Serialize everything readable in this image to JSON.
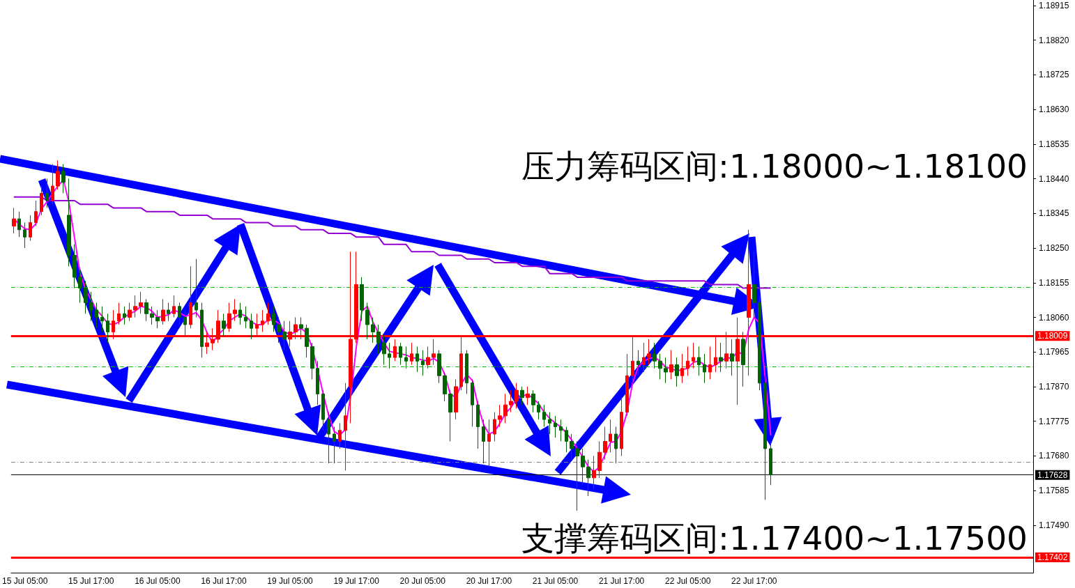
{
  "chart_data": {
    "type": "candlestick",
    "annotations": [
      "压力筹码区间:1.18000~1.18100",
      "支撑筹码区间:1.17400~1.17500"
    ],
    "categories": [
      null,
      null,
      "15 Jul 05:00",
      null,
      null,
      null,
      null,
      null,
      null,
      null,
      null,
      null,
      null,
      null,
      "15 Jul 17:00",
      null,
      null,
      null,
      null,
      null,
      null,
      null,
      null,
      null,
      null,
      null,
      "16 Jul 05:00",
      null,
      null,
      null,
      null,
      null,
      null,
      null,
      null,
      null,
      null,
      null,
      "16 Jul 17:00",
      null,
      null,
      null,
      null,
      null,
      null,
      null,
      null,
      null,
      null,
      null,
      "19 Jul 05:00",
      null,
      null,
      null,
      null,
      null,
      null,
      null,
      null,
      null,
      null,
      null,
      "19 Jul 17:00",
      null,
      null,
      null,
      null,
      null,
      null,
      null,
      null,
      null,
      null,
      null,
      "20 Jul 05:00",
      null,
      null,
      null,
      null,
      null,
      null,
      null,
      null,
      null,
      null,
      null,
      "20 Jul 17:00",
      null,
      null,
      null,
      null,
      null,
      null,
      null,
      null,
      null,
      null,
      null,
      "21 Jul 05:00",
      null,
      null,
      null,
      null,
      null,
      null,
      null,
      null,
      null,
      null,
      null,
      "21 Jul 17:00",
      null,
      null,
      null,
      null,
      null,
      null,
      null,
      null,
      null,
      null,
      null,
      "22 Jul 05:00",
      null,
      null,
      null,
      null,
      null,
      null,
      null,
      null,
      null,
      null,
      null,
      "22 Jul 17:00",
      null,
      null,
      null
    ],
    "ohlc": [
      [
        1.1831,
        1.1836,
        1.1829,
        1.1833
      ],
      [
        1.1833,
        1.1835,
        1.1828,
        1.183
      ],
      [
        1.183,
        1.1832,
        1.1825,
        1.1828
      ],
      [
        1.1828,
        1.1834,
        1.1827,
        1.1832
      ],
      [
        1.1832,
        1.1838,
        1.1831,
        1.1835
      ],
      [
        1.1835,
        1.1842,
        1.1834,
        1.184
      ],
      [
        1.184,
        1.1844,
        1.1836,
        1.1838
      ],
      [
        1.1838,
        1.1848,
        1.1837,
        1.1842
      ],
      [
        1.1842,
        1.1849,
        1.1841,
        1.1846
      ],
      [
        1.1846,
        1.1848,
        1.184,
        1.1843
      ],
      [
        1.1834,
        1.1844,
        1.182,
        1.1823
      ],
      [
        1.1823,
        1.1826,
        1.1814,
        1.1817
      ],
      [
        1.1817,
        1.1819,
        1.181,
        1.1814
      ],
      [
        1.1814,
        1.1816,
        1.1807,
        1.181
      ],
      [
        1.181,
        1.1813,
        1.1805,
        1.1808
      ],
      [
        1.1808,
        1.181,
        1.1803,
        1.1806
      ],
      [
        1.1806,
        1.1809,
        1.1802,
        1.1805
      ],
      [
        1.1805,
        1.1807,
        1.1799,
        1.1802
      ],
      [
        1.1802,
        1.1808,
        1.18,
        1.1805
      ],
      [
        1.1805,
        1.181,
        1.1804,
        1.1807
      ],
      [
        1.1807,
        1.1809,
        1.1804,
        1.1806
      ],
      [
        1.1806,
        1.181,
        1.1805,
        1.1808
      ],
      [
        1.1808,
        1.1812,
        1.1806,
        1.1809
      ],
      [
        1.1809,
        1.1813,
        1.1807,
        1.181
      ],
      [
        1.181,
        1.1811,
        1.1805,
        1.1807
      ],
      [
        1.1807,
        1.1809,
        1.1804,
        1.1806
      ],
      [
        1.1806,
        1.1808,
        1.1803,
        1.1805
      ],
      [
        1.1805,
        1.1811,
        1.1804,
        1.1808
      ],
      [
        1.1808,
        1.181,
        1.1805,
        1.1807
      ],
      [
        1.1807,
        1.1812,
        1.1806,
        1.1809
      ],
      [
        1.1809,
        1.181,
        1.1804,
        1.1806
      ],
      [
        1.1806,
        1.1808,
        1.1801,
        1.1804
      ],
      [
        1.1804,
        1.182,
        1.1803,
        1.181
      ],
      [
        1.181,
        1.1822,
        1.1806,
        1.1808
      ],
      [
        1.1808,
        1.181,
        1.1795,
        1.1798
      ],
      [
        1.1798,
        1.1802,
        1.1796,
        1.1799
      ],
      [
        1.1799,
        1.1803,
        1.1797,
        1.18
      ],
      [
        1.18,
        1.1808,
        1.1799,
        1.1805
      ],
      [
        1.1805,
        1.1807,
        1.1801,
        1.1803
      ],
      [
        1.1803,
        1.181,
        1.1802,
        1.1807
      ],
      [
        1.1807,
        1.1811,
        1.1805,
        1.1808
      ],
      [
        1.1808,
        1.181,
        1.1804,
        1.1806
      ],
      [
        1.1806,
        1.1809,
        1.1803,
        1.1805
      ],
      [
        1.1805,
        1.1807,
        1.18,
        1.1803
      ],
      [
        1.1803,
        1.1807,
        1.1801,
        1.1804
      ],
      [
        1.1804,
        1.1808,
        1.1802,
        1.1805
      ],
      [
        1.1805,
        1.181,
        1.1804,
        1.1807
      ],
      [
        1.1807,
        1.1809,
        1.1802,
        1.1804
      ],
      [
        1.1804,
        1.1806,
        1.1799,
        1.1802
      ],
      [
        1.1802,
        1.1805,
        1.1797,
        1.18
      ],
      [
        1.18,
        1.1805,
        1.1798,
        1.1802
      ],
      [
        1.1802,
        1.1806,
        1.18,
        1.1804
      ],
      [
        1.1804,
        1.1806,
        1.18,
        1.1803
      ],
      [
        1.1803,
        1.1804,
        1.1795,
        1.1798
      ],
      [
        1.1798,
        1.1799,
        1.1789,
        1.1792
      ],
      [
        1.1792,
        1.1794,
        1.1782,
        1.1785
      ],
      [
        1.1785,
        1.1786,
        1.1775,
        1.1778
      ],
      [
        1.1778,
        1.178,
        1.1766,
        1.1774
      ],
      [
        1.1774,
        1.1776,
        1.1766,
        1.1772
      ],
      [
        1.1772,
        1.1777,
        1.177,
        1.1775
      ],
      [
        1.1775,
        1.1788,
        1.1764,
        1.1779
      ],
      [
        1.1787,
        1.1824,
        1.1777,
        1.18
      ],
      [
        1.18,
        1.1824,
        1.1799,
        1.1815
      ],
      [
        1.1815,
        1.1817,
        1.1805,
        1.1808
      ],
      [
        1.1808,
        1.181,
        1.18,
        1.1804
      ],
      [
        1.1804,
        1.1806,
        1.1799,
        1.1802
      ],
      [
        1.1802,
        1.1804,
        1.1796,
        1.1799
      ],
      [
        1.1799,
        1.1801,
        1.1793,
        1.1796
      ],
      [
        1.1796,
        1.1799,
        1.1792,
        1.1795
      ],
      [
        1.1795,
        1.18,
        1.1794,
        1.1798
      ],
      [
        1.1798,
        1.1799,
        1.1793,
        1.1795
      ],
      [
        1.1795,
        1.1798,
        1.1792,
        1.1794
      ],
      [
        1.1794,
        1.1799,
        1.1793,
        1.1796
      ],
      [
        1.1796,
        1.1798,
        1.1791,
        1.1794
      ],
      [
        1.1794,
        1.1797,
        1.179,
        1.1793
      ],
      [
        1.1793,
        1.1798,
        1.1792,
        1.1795
      ],
      [
        1.1795,
        1.18,
        1.1793,
        1.1796
      ],
      [
        1.1796,
        1.1797,
        1.1788,
        1.179
      ],
      [
        1.179,
        1.1791,
        1.1783,
        1.1785
      ],
      [
        1.1785,
        1.1786,
        1.1772,
        1.178
      ],
      [
        1.178,
        1.1789,
        1.1778,
        1.1787
      ],
      [
        1.1787,
        1.1801,
        1.1786,
        1.1796
      ],
      [
        1.1796,
        1.1797,
        1.1785,
        1.1788
      ],
      [
        1.1788,
        1.1789,
        1.1776,
        1.1782
      ],
      [
        1.1782,
        1.1783,
        1.177,
        1.1776
      ],
      [
        1.1776,
        1.1778,
        1.1766,
        1.1772
      ],
      [
        1.1772,
        1.1778,
        1.1765,
        1.1774
      ],
      [
        1.1774,
        1.178,
        1.1772,
        1.1778
      ],
      [
        1.1778,
        1.1782,
        1.1776,
        1.1779
      ],
      [
        1.1779,
        1.1785,
        1.1777,
        1.1782
      ],
      [
        1.1782,
        1.1786,
        1.178,
        1.1783
      ],
      [
        1.1783,
        1.1788,
        1.1781,
        1.1786
      ],
      [
        1.1786,
        1.1787,
        1.1782,
        1.1784
      ],
      [
        1.1784,
        1.1787,
        1.1782,
        1.1785
      ],
      [
        1.1785,
        1.1786,
        1.178,
        1.1782
      ],
      [
        1.1782,
        1.1783,
        1.1778,
        1.178
      ],
      [
        1.178,
        1.1782,
        1.1776,
        1.1778
      ],
      [
        1.1778,
        1.178,
        1.1774,
        1.1777
      ],
      [
        1.1777,
        1.1779,
        1.1773,
        1.1776
      ],
      [
        1.1776,
        1.1778,
        1.1772,
        1.1775
      ],
      [
        1.1775,
        1.1776,
        1.1769,
        1.1772
      ],
      [
        1.1772,
        1.1774,
        1.1767,
        1.177
      ],
      [
        1.177,
        1.1772,
        1.1753,
        1.1768
      ],
      [
        1.1768,
        1.177,
        1.176,
        1.1765
      ],
      [
        1.1765,
        1.1767,
        1.1757,
        1.1762
      ],
      [
        1.1762,
        1.1768,
        1.1759,
        1.1764
      ],
      [
        1.1764,
        1.1772,
        1.1762,
        1.1769
      ],
      [
        1.1769,
        1.1776,
        1.1767,
        1.1772
      ],
      [
        1.1772,
        1.1778,
        1.1769,
        1.1774
      ],
      [
        1.1774,
        1.1776,
        1.1766,
        1.177
      ],
      [
        1.177,
        1.1784,
        1.1768,
        1.178
      ],
      [
        1.178,
        1.1796,
        1.1779,
        1.179
      ],
      [
        1.179,
        1.1801,
        1.1788,
        1.1794
      ],
      [
        1.1794,
        1.1797,
        1.179,
        1.1793
      ],
      [
        1.1793,
        1.1799,
        1.1791,
        1.1795
      ],
      [
        1.1795,
        1.18,
        1.1793,
        1.1796
      ],
      [
        1.1796,
        1.1799,
        1.1792,
        1.1794
      ],
      [
        1.1794,
        1.1796,
        1.1789,
        1.1792
      ],
      [
        1.1792,
        1.1795,
        1.1788,
        1.1791
      ],
      [
        1.1791,
        1.1797,
        1.1789,
        1.1793
      ],
      [
        1.1793,
        1.1795,
        1.1787,
        1.179
      ],
      [
        1.179,
        1.1796,
        1.1788,
        1.1792
      ],
      [
        1.1792,
        1.1798,
        1.179,
        1.1794
      ],
      [
        1.1794,
        1.1799,
        1.1792,
        1.1795
      ],
      [
        1.1795,
        1.1798,
        1.179,
        1.1793
      ],
      [
        1.1793,
        1.1796,
        1.1788,
        1.1791
      ],
      [
        1.1791,
        1.1798,
        1.1789,
        1.1793
      ],
      [
        1.1793,
        1.1801,
        1.1791,
        1.1795
      ],
      [
        1.1795,
        1.1799,
        1.1791,
        1.1794
      ],
      [
        1.1794,
        1.1802,
        1.1792,
        1.1796
      ],
      [
        1.1796,
        1.18,
        1.179,
        1.1794
      ],
      [
        1.1794,
        1.1806,
        1.1782,
        1.18
      ],
      [
        1.18,
        1.1802,
        1.1787,
        1.1793
      ],
      [
        1.1806,
        1.183,
        1.179,
        1.1815
      ],
      [
        1.1815,
        1.1824,
        1.1806,
        1.181
      ],
      [
        1.181,
        1.1812,
        1.1786,
        1.1788
      ],
      [
        1.1788,
        1.179,
        1.1756,
        1.177
      ],
      [
        1.177,
        1.1772,
        1.176,
        1.17628
      ]
    ],
    "series": [
      {
        "type": "line",
        "color": "#9400d3",
        "values": [
          1.1839,
          1.1839,
          1.1839,
          1.1839,
          1.1839,
          1.1839,
          1.1838,
          1.1838,
          1.1838,
          1.1838,
          1.1838,
          1.1838,
          1.1837,
          1.1837,
          1.1837,
          1.1837,
          1.1837,
          1.1837,
          1.1836,
          1.1836,
          1.1836,
          1.1836,
          1.1836,
          1.1836,
          1.1835,
          1.1835,
          1.1835,
          1.1835,
          1.1835,
          1.1835,
          1.1834,
          1.1834,
          1.1834,
          1.1834,
          1.1834,
          1.1834,
          1.1833,
          1.1833,
          1.1833,
          1.1833,
          1.1833,
          1.1833,
          1.1832,
          1.1832,
          1.1832,
          1.1832,
          1.1832,
          1.1831,
          1.1831,
          1.1831,
          1.1831,
          1.1831,
          1.183,
          1.183,
          1.183,
          1.183,
          1.183,
          1.1829,
          1.1829,
          1.1829,
          1.1829,
          1.1829,
          1.1828,
          1.1828,
          1.1828,
          1.1828,
          1.1828,
          1.1826,
          1.1826,
          1.1826,
          1.1826,
          1.1826,
          1.1824,
          1.1824,
          1.1824,
          1.1824,
          1.1824,
          1.1823,
          1.1823,
          1.1823,
          1.1823,
          1.1823,
          1.1822,
          1.1822,
          1.1822,
          1.1822,
          1.1822,
          1.1821,
          1.1821,
          1.1821,
          1.1821,
          1.1821,
          1.182,
          1.182,
          1.182,
          1.182,
          1.182,
          1.1818,
          1.1818,
          1.1818,
          1.1818,
          1.1818,
          1.1817,
          1.1817,
          1.1817,
          1.1817,
          1.1817,
          1.1817,
          1.1817,
          1.1817,
          1.1817,
          1.1816,
          1.1816,
          1.1816,
          1.1816,
          1.1816,
          1.1816,
          1.1816,
          1.1816,
          1.1816,
          1.1816,
          1.1816,
          1.1816,
          1.1816,
          1.1816,
          1.1816,
          1.1815,
          1.1815,
          1.1815,
          1.1815,
          1.1815,
          1.1815,
          1.1814,
          1.1814,
          1.1814,
          1.1814,
          1.1814,
          1.1814
        ]
      },
      {
        "type": "line",
        "color": "#ff00ff",
        "values": [
          1.1833,
          1.18315,
          1.18303,
          1.183,
          1.18317,
          1.18357,
          1.18377,
          1.184,
          1.1842,
          1.18437,
          1.18373,
          1.18277,
          1.1818,
          1.18137,
          1.18107,
          1.1808,
          1.18063,
          1.18043,
          1.1804,
          1.18047,
          1.1806,
          1.1807,
          1.18077,
          1.1809,
          1.18087,
          1.18077,
          1.1806,
          1.18063,
          1.18067,
          1.1808,
          1.18073,
          1.18063,
          1.18067,
          1.18073,
          1.18053,
          1.18017,
          1.1799,
          1.18013,
          1.18027,
          1.1805,
          1.1806,
          1.1807,
          1.18063,
          1.18047,
          1.1804,
          1.1804,
          1.18053,
          1.18053,
          1.18043,
          1.1802,
          1.18013,
          1.1802,
          1.1803,
          1.18017,
          1.17977,
          1.17917,
          1.1785,
          1.1779,
          1.17747,
          1.17737,
          1.17753,
          1.17847,
          1.1798,
          1.18077,
          1.1809,
          1.18047,
          1.18017,
          1.1799,
          1.17967,
          1.17963,
          1.1796,
          1.17957,
          1.1795,
          1.17947,
          1.17943,
          1.1794,
          1.17947,
          1.17937,
          1.17903,
          1.1785,
          1.1784,
          1.17877,
          1.17903,
          1.17887,
          1.1782,
          1.17767,
          1.1774,
          1.17747,
          1.1777,
          1.17797,
          1.17813,
          1.17837,
          1.17843,
          1.1785,
          1.17837,
          1.17823,
          1.178,
          1.17783,
          1.1777,
          1.1776,
          1.17743,
          1.17723,
          1.177,
          1.17677,
          1.1765,
          1.17637,
          1.1765,
          1.17683,
          1.17717,
          1.1772,
          1.17747,
          1.178,
          1.1788,
          1.17923,
          1.1794,
          1.17947,
          1.1795,
          1.1794,
          1.17923,
          1.1792,
          1.17913,
          1.17917,
          1.1792,
          1.17937,
          1.1794,
          1.1793,
          1.17923,
          1.1793,
          1.1794,
          1.1795,
          1.17947,
          1.17967,
          1.17957,
          1.18027,
          1.1806,
          1.18043,
          1.17893,
          1.17736
        ]
      }
    ],
    "ylim": [
      1.1736,
      1.1893
    ],
    "yticks": [
      {
        "value": 1.1749,
        "label": "1.17490"
      },
      {
        "value": 1.17585,
        "label": "1.17585"
      },
      {
        "value": 1.1768,
        "label": "1.17680"
      },
      {
        "value": 1.17775,
        "label": "1.17775"
      },
      {
        "value": 1.1787,
        "label": "1.17870"
      },
      {
        "value": 1.17965,
        "label": "1.17965"
      },
      {
        "value": 1.1806,
        "label": "1.18060"
      },
      {
        "value": 1.18155,
        "label": "1.18155"
      },
      {
        "value": 1.1825,
        "label": "1.18250"
      },
      {
        "value": 1.18345,
        "label": "1.18345"
      },
      {
        "value": 1.1844,
        "label": "1.18440"
      },
      {
        "value": 1.18535,
        "label": "1.18535"
      },
      {
        "value": 1.1863,
        "label": "1.18630"
      },
      {
        "value": 1.18725,
        "label": "1.18725"
      },
      {
        "value": 1.1882,
        "label": "1.18820"
      },
      {
        "value": 1.18915,
        "label": "1.18915"
      }
    ],
    "ref_lines": [
      {
        "axis": "y",
        "value": 1.18009,
        "label": "1.18009",
        "color": "#ff0000"
      },
      {
        "axis": "y",
        "value": 1.17628,
        "label": "1.17628",
        "color": "#000000"
      },
      {
        "axis": "y",
        "value": 1.17402,
        "label": "1.17402",
        "color": "#ff0000"
      },
      {
        "axis": "y",
        "value": 1.18143,
        "label": null,
        "color": "#00c000",
        "line_style": "dashed"
      },
      {
        "axis": "y",
        "value": 1.17925,
        "label": null,
        "color": "#00c000",
        "line_style": "dashed"
      },
      {
        "axis": "y",
        "value": 1.17664,
        "label": null,
        "color": "#808080",
        "line_style": "dashed"
      }
    ],
    "grid": false
  }
}
